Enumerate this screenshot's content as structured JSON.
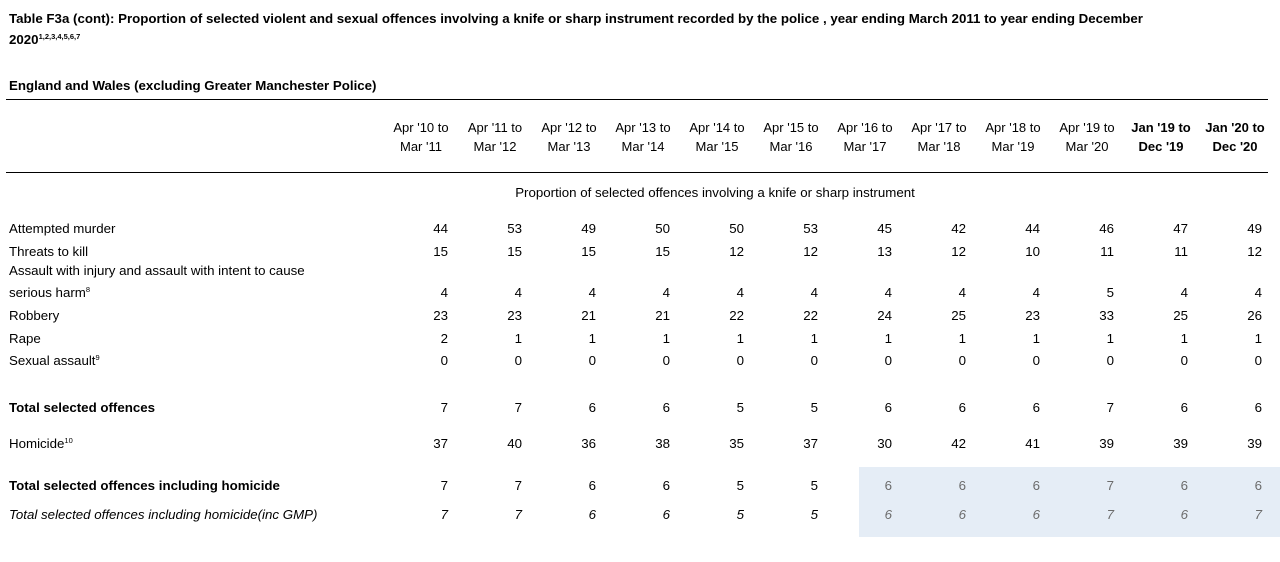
{
  "title": {
    "text": "Table F3a (cont):  Proportion of selected violent and sexual offences involving a knife or sharp instrument recorded by the police , year ending March 2011 to year ending December 2020",
    "footnotes": "1,2,3,4,5,6,7"
  },
  "subtitle": "England and Wales (excluding Greater Manchester Police)",
  "caption": "Proportion of selected offences involving a knife or sharp instrument",
  "columns": [
    {
      "line1": "Apr '10 to",
      "line2": "Mar '11",
      "bold": false
    },
    {
      "line1": "Apr '11 to",
      "line2": "Mar '12",
      "bold": false
    },
    {
      "line1": "Apr '12 to",
      "line2": "Mar '13",
      "bold": false
    },
    {
      "line1": "Apr '13 to",
      "line2": "Mar '14",
      "bold": false
    },
    {
      "line1": "Apr '14 to",
      "line2": "Mar '15",
      "bold": false
    },
    {
      "line1": "Apr '15 to",
      "line2": "Mar '16",
      "bold": false
    },
    {
      "line1": "Apr '16 to",
      "line2": "Mar '17",
      "bold": false
    },
    {
      "line1": "Apr '17 to",
      "line2": "Mar '18",
      "bold": false
    },
    {
      "line1": "Apr '18 to",
      "line2": "Mar '19",
      "bold": false
    },
    {
      "line1": "Apr '19 to",
      "line2": "Mar '20",
      "bold": false
    },
    {
      "line1": "Jan '19 to",
      "line2": "Dec '19",
      "bold": true
    },
    {
      "line1": "Jan '20 to",
      "line2": "Dec '20",
      "bold": true
    }
  ],
  "rows": [
    {
      "label": "Attempted murder",
      "footnote": "",
      "style": "normal",
      "values": [
        44,
        53,
        49,
        50,
        50,
        53,
        45,
        42,
        44,
        46,
        47,
        49
      ]
    },
    {
      "label": "Threats to kill",
      "footnote": "",
      "style": "normal",
      "values": [
        15,
        15,
        15,
        15,
        12,
        12,
        13,
        12,
        10,
        11,
        11,
        12
      ]
    },
    {
      "label": "serious harm",
      "pre_label": "Assault with injury and assault with intent to cause",
      "footnote": "8",
      "style": "normal",
      "values": [
        4,
        4,
        4,
        4,
        4,
        4,
        4,
        4,
        4,
        5,
        4,
        4
      ]
    },
    {
      "label": "Robbery",
      "footnote": "",
      "style": "normal",
      "values": [
        23,
        23,
        21,
        21,
        22,
        22,
        24,
        25,
        23,
        33,
        25,
        26
      ]
    },
    {
      "label": "Rape",
      "footnote": "",
      "style": "normal",
      "values": [
        2,
        1,
        1,
        1,
        1,
        1,
        1,
        1,
        1,
        1,
        1,
        1
      ]
    },
    {
      "label": "Sexual assault",
      "footnote": "9",
      "style": "normal",
      "values": [
        0,
        0,
        0,
        0,
        0,
        0,
        0,
        0,
        0,
        0,
        0,
        0
      ]
    },
    {
      "label": "Total selected offences",
      "footnote": "",
      "style": "bold",
      "values": [
        7,
        7,
        6,
        6,
        5,
        5,
        6,
        6,
        6,
        7,
        6,
        6
      ]
    },
    {
      "label": "Homicide",
      "footnote": "10",
      "style": "normal",
      "values": [
        37,
        40,
        36,
        38,
        35,
        37,
        30,
        42,
        41,
        39,
        39,
        39
      ]
    },
    {
      "label": "Total selected offences including homicide",
      "footnote": "",
      "style": "bold",
      "values": [
        7,
        7,
        6,
        6,
        5,
        5,
        6,
        6,
        6,
        7,
        6,
        6
      ]
    },
    {
      "label": "Total selected offences including homicide(inc GMP)",
      "footnote": "",
      "style": "italic",
      "values": [
        7,
        7,
        6,
        6,
        5,
        5,
        6,
        6,
        6,
        7,
        6,
        7
      ]
    }
  ],
  "highlight": {
    "color": "#e5edf6",
    "text_color": "#6b6b6b"
  }
}
